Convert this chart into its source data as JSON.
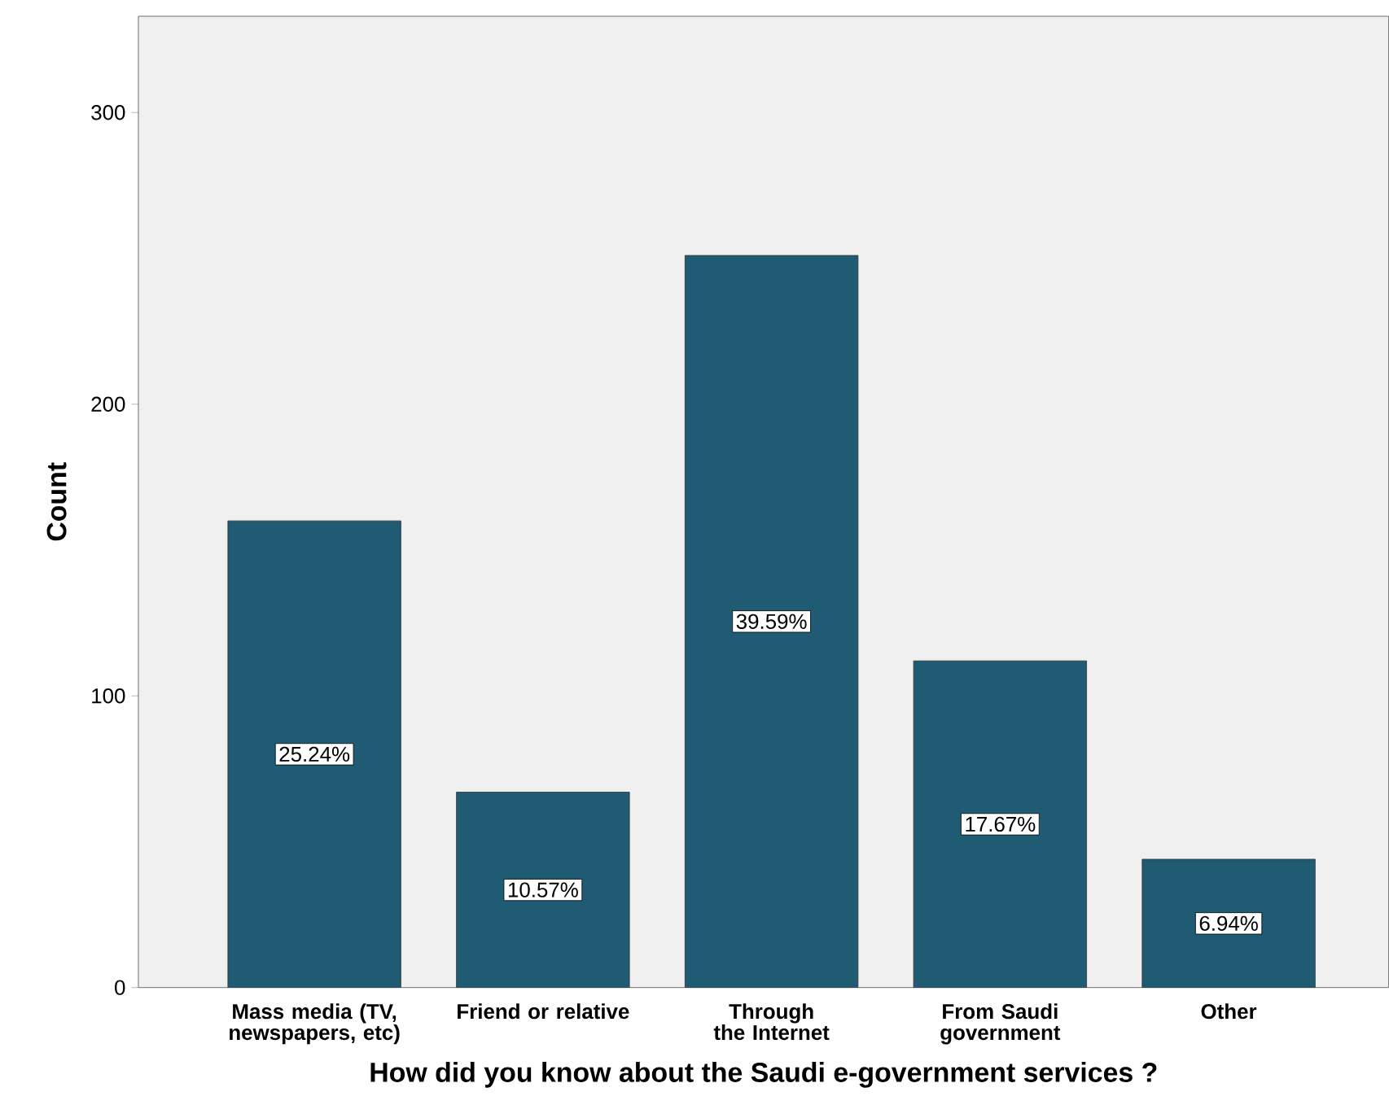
{
  "chart_data": {
    "type": "bar",
    "xlabel": "How did you know about the Saudi e-government services ?",
    "ylabel": "Count",
    "categories": [
      "Mass media (TV, newspapers, etc)",
      "Friend or relative",
      "Through the Internet",
      "From Saudi government",
      "Other"
    ],
    "values": [
      160,
      67,
      251,
      112,
      44
    ],
    "annotations": [
      "25.24%",
      "10.57%",
      "39.59%",
      "17.67%",
      "6.94%"
    ],
    "color": "#1f5b72",
    "ylim": [
      0,
      333
    ],
    "yticks": [
      0,
      100,
      200,
      300
    ],
    "grid": false
  }
}
